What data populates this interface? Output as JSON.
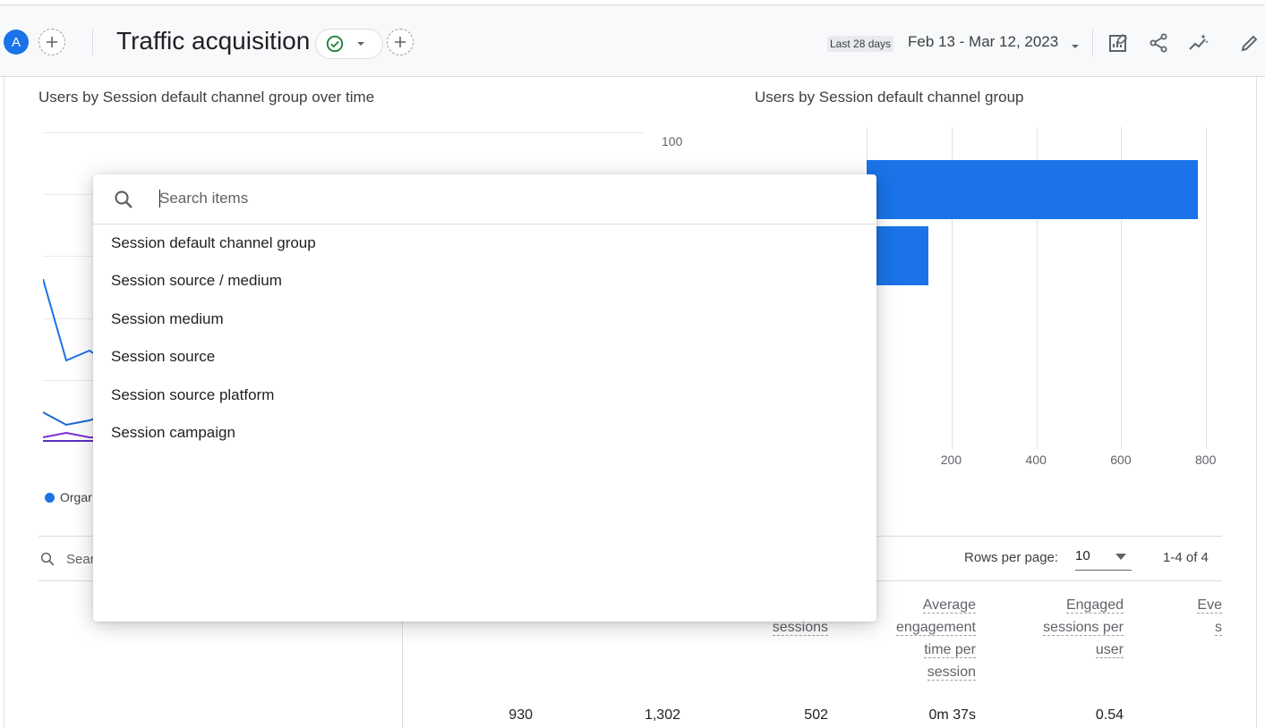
{
  "header": {
    "avatar_letter": "A",
    "title": "Traffic acquisition",
    "date_preset": "Last 28 days",
    "date_range": "Feb 13 - Mar 12, 2023"
  },
  "line_chart": {
    "title": "Users by Session default channel group over time",
    "y_top_label": "100",
    "legend_label": "Orgar"
  },
  "bar_chart": {
    "title": "Users by Session default channel group",
    "x_ticks": [
      "200",
      "400",
      "600",
      "800"
    ]
  },
  "chart_data": {
    "type": "bar",
    "orientation": "horizontal",
    "title": "Users by Session default channel group",
    "xlim": [
      0,
      800
    ],
    "x_ticks": [
      "200",
      "400",
      "600",
      "800"
    ],
    "values": [
      780,
      145
    ]
  },
  "table": {
    "search_placeholder": "Sear",
    "rows_per_page_label": "Rows per page:",
    "rows_per_page_value": "10",
    "pager_text": "1-4 of 4",
    "columns": {
      "sessions": [
        "sessions"
      ],
      "avg_engagement": [
        "Average",
        "engagement",
        "time per",
        "session"
      ],
      "engaged_per_user": [
        "Engaged",
        "sessions per",
        "user"
      ],
      "events": [
        "Eve",
        "s"
      ]
    },
    "totals": {
      "users": "930",
      "sessions_total": "1,302",
      "engaged_sessions": "502",
      "avg_engagement_time": "0m 37s",
      "engaged_per_user": "0.54"
    }
  },
  "dropdown": {
    "search_placeholder": "Search items",
    "items": [
      "Session default channel group",
      "Session source / medium",
      "Session medium",
      "Session source",
      "Session source platform",
      "Session campaign"
    ]
  },
  "colors": {
    "accent": "#1a73e8",
    "success": "#188038",
    "line_orange": "#e37400",
    "line_purple": "#7b2fd4"
  }
}
